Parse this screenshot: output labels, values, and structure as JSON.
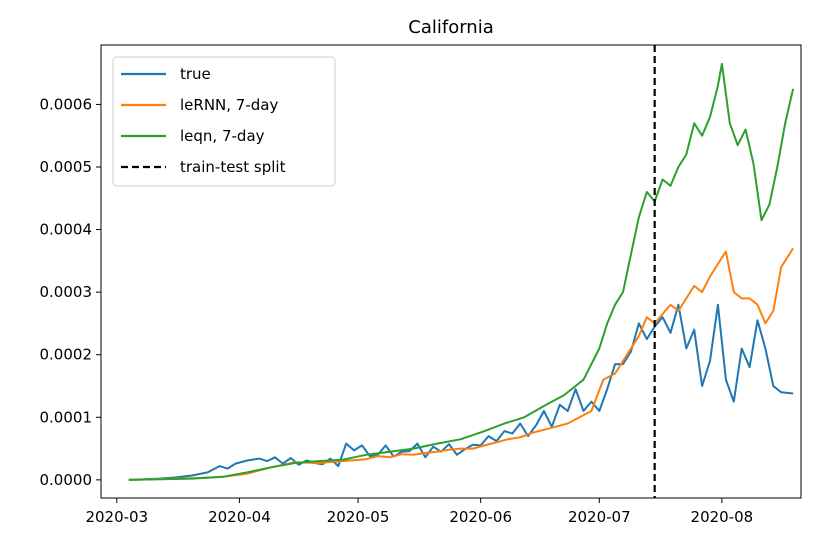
{
  "chart_data": {
    "type": "line",
    "title": "California",
    "xlabel": "",
    "ylabel": "",
    "xlim": [
      "2020-02-26",
      "2020-08-21"
    ],
    "ylim": [
      -2.9e-05,
      0.000695
    ],
    "x_ticks": [
      "2020-03",
      "2020-04",
      "2020-05",
      "2020-06",
      "2020-07",
      "2020-08"
    ],
    "y_ticks": [
      "0.0000",
      "0.0001",
      "0.0002",
      "0.0003",
      "0.0004",
      "0.0005",
      "0.0006"
    ],
    "grid": false,
    "legend_position": "top-left",
    "vline": {
      "x": "2020-07-15",
      "label": "train-test split",
      "color": "#000000",
      "style": "dashed"
    },
    "series": [
      {
        "name": "true",
        "color": "#1f77b4",
        "points": [
          [
            "2020-03-04",
            0.0
          ],
          [
            "2020-03-08",
            1e-06
          ],
          [
            "2020-03-12",
            2e-06
          ],
          [
            "2020-03-16",
            4e-06
          ],
          [
            "2020-03-20",
            7e-06
          ],
          [
            "2020-03-24",
            1.2e-05
          ],
          [
            "2020-03-27",
            2.2e-05
          ],
          [
            "2020-03-29",
            1.8e-05
          ],
          [
            "2020-03-31",
            2.6e-05
          ],
          [
            "2020-04-03",
            3.1e-05
          ],
          [
            "2020-04-06",
            3.4e-05
          ],
          [
            "2020-04-08",
            3e-05
          ],
          [
            "2020-04-10",
            3.6e-05
          ],
          [
            "2020-04-12",
            2.6e-05
          ],
          [
            "2020-04-14",
            3.5e-05
          ],
          [
            "2020-04-16",
            2.4e-05
          ],
          [
            "2020-04-18",
            3.1e-05
          ],
          [
            "2020-04-20",
            2.7e-05
          ],
          [
            "2020-04-22",
            2.5e-05
          ],
          [
            "2020-04-24",
            3.4e-05
          ],
          [
            "2020-04-26",
            2.2e-05
          ],
          [
            "2020-04-28",
            5.8e-05
          ],
          [
            "2020-04-30",
            4.7e-05
          ],
          [
            "2020-05-02",
            5.5e-05
          ],
          [
            "2020-05-04",
            3.8e-05
          ],
          [
            "2020-05-06",
            4e-05
          ],
          [
            "2020-05-08",
            5.5e-05
          ],
          [
            "2020-05-10",
            3.7e-05
          ],
          [
            "2020-05-12",
            4.5e-05
          ],
          [
            "2020-05-14",
            4.6e-05
          ],
          [
            "2020-05-16",
            5.8e-05
          ],
          [
            "2020-05-18",
            3.6e-05
          ],
          [
            "2020-05-20",
            5.3e-05
          ],
          [
            "2020-05-22",
            4.5e-05
          ],
          [
            "2020-05-24",
            5.7e-05
          ],
          [
            "2020-05-26",
            4e-05
          ],
          [
            "2020-05-28",
            4.9e-05
          ],
          [
            "2020-05-30",
            5.6e-05
          ],
          [
            "2020-06-01",
            5.5e-05
          ],
          [
            "2020-06-03",
            7e-05
          ],
          [
            "2020-06-05",
            6.2e-05
          ],
          [
            "2020-06-07",
            7.8e-05
          ],
          [
            "2020-06-09",
            7.4e-05
          ],
          [
            "2020-06-11",
            9e-05
          ],
          [
            "2020-06-13",
            7e-05
          ],
          [
            "2020-06-15",
            8.7e-05
          ],
          [
            "2020-06-17",
            0.00011
          ],
          [
            "2020-06-19",
            8.5e-05
          ],
          [
            "2020-06-21",
            0.00012
          ],
          [
            "2020-06-23",
            0.00011
          ],
          [
            "2020-06-25",
            0.000145
          ],
          [
            "2020-06-27",
            0.00011
          ],
          [
            "2020-06-29",
            0.000125
          ],
          [
            "2020-07-01",
            0.00011
          ],
          [
            "2020-07-03",
            0.000145
          ],
          [
            "2020-07-05",
            0.000185
          ],
          [
            "2020-07-07",
            0.000185
          ],
          [
            "2020-07-09",
            0.000205
          ],
          [
            "2020-07-11",
            0.00025
          ],
          [
            "2020-07-13",
            0.000225
          ],
          [
            "2020-07-15",
            0.000245
          ],
          [
            "2020-07-17",
            0.00026
          ],
          [
            "2020-07-19",
            0.000235
          ],
          [
            "2020-07-21",
            0.00028
          ],
          [
            "2020-07-23",
            0.00021
          ],
          [
            "2020-07-25",
            0.00024
          ],
          [
            "2020-07-27",
            0.00015
          ],
          [
            "2020-07-29",
            0.00019
          ],
          [
            "2020-07-31",
            0.00028
          ],
          [
            "2020-08-02",
            0.00016
          ],
          [
            "2020-08-04",
            0.000125
          ],
          [
            "2020-08-06",
            0.00021
          ],
          [
            "2020-08-08",
            0.00018
          ],
          [
            "2020-08-10",
            0.000255
          ],
          [
            "2020-08-12",
            0.00021
          ],
          [
            "2020-08-14",
            0.00015
          ],
          [
            "2020-08-16",
            0.00014
          ],
          [
            "2020-08-19",
            0.000138
          ]
        ]
      },
      {
        "name": "leRNN, 7-day",
        "color": "#ff7f0e",
        "points": [
          [
            "2020-03-04",
            0.0
          ],
          [
            "2020-03-10",
            1e-06
          ],
          [
            "2020-03-16",
            2e-06
          ],
          [
            "2020-03-22",
            3e-06
          ],
          [
            "2020-03-28",
            5e-06
          ],
          [
            "2020-04-03",
            1e-05
          ],
          [
            "2020-04-09",
            2e-05
          ],
          [
            "2020-04-15",
            2.8e-05
          ],
          [
            "2020-04-21",
            2.7e-05
          ],
          [
            "2020-04-27",
            3e-05
          ],
          [
            "2020-05-03",
            3.3e-05
          ],
          [
            "2020-05-06",
            3.8e-05
          ],
          [
            "2020-05-09",
            3.6e-05
          ],
          [
            "2020-05-12",
            4.1e-05
          ],
          [
            "2020-05-15",
            4e-05
          ],
          [
            "2020-05-18",
            4.3e-05
          ],
          [
            "2020-05-21",
            4.5e-05
          ],
          [
            "2020-05-24",
            4.8e-05
          ],
          [
            "2020-05-27",
            5e-05
          ],
          [
            "2020-05-30",
            5e-05
          ],
          [
            "2020-06-02",
            5.5e-05
          ],
          [
            "2020-06-05",
            6e-05
          ],
          [
            "2020-06-08",
            6.5e-05
          ],
          [
            "2020-06-11",
            6.8e-05
          ],
          [
            "2020-06-14",
            7.5e-05
          ],
          [
            "2020-06-17",
            8e-05
          ],
          [
            "2020-06-20",
            8.5e-05
          ],
          [
            "2020-06-23",
            9e-05
          ],
          [
            "2020-06-26",
            0.0001
          ],
          [
            "2020-06-29",
            0.00011
          ],
          [
            "2020-07-02",
            0.00016
          ],
          [
            "2020-07-05",
            0.00017
          ],
          [
            "2020-07-08",
            0.0002
          ],
          [
            "2020-07-11",
            0.00023
          ],
          [
            "2020-07-13",
            0.00026
          ],
          [
            "2020-07-15",
            0.00025
          ],
          [
            "2020-07-17",
            0.000265
          ],
          [
            "2020-07-19",
            0.00028
          ],
          [
            "2020-07-21",
            0.00027
          ],
          [
            "2020-07-23",
            0.00029
          ],
          [
            "2020-07-25",
            0.00031
          ],
          [
            "2020-07-27",
            0.0003
          ],
          [
            "2020-07-29",
            0.000325
          ],
          [
            "2020-07-31",
            0.000345
          ],
          [
            "2020-08-02",
            0.000365
          ],
          [
            "2020-08-04",
            0.0003
          ],
          [
            "2020-08-06",
            0.00029
          ],
          [
            "2020-08-08",
            0.00029
          ],
          [
            "2020-08-10",
            0.00028
          ],
          [
            "2020-08-12",
            0.00025
          ],
          [
            "2020-08-14",
            0.00027
          ],
          [
            "2020-08-16",
            0.00034
          ],
          [
            "2020-08-19",
            0.00037
          ]
        ]
      },
      {
        "name": "leqn, 7-day",
        "color": "#2ca02c",
        "points": [
          [
            "2020-03-04",
            0.0
          ],
          [
            "2020-03-12",
            1e-06
          ],
          [
            "2020-03-20",
            2e-06
          ],
          [
            "2020-03-28",
            5e-06
          ],
          [
            "2020-04-03",
            1.2e-05
          ],
          [
            "2020-04-09",
            2e-05
          ],
          [
            "2020-04-15",
            2.7e-05
          ],
          [
            "2020-04-21",
            3e-05
          ],
          [
            "2020-04-27",
            3.2e-05
          ],
          [
            "2020-05-03",
            4e-05
          ],
          [
            "2020-05-09",
            4.5e-05
          ],
          [
            "2020-05-15",
            5e-05
          ],
          [
            "2020-05-21",
            5.8e-05
          ],
          [
            "2020-05-27",
            6.5e-05
          ],
          [
            "2020-06-02",
            7.8e-05
          ],
          [
            "2020-06-07",
            9e-05
          ],
          [
            "2020-06-12",
            0.0001
          ],
          [
            "2020-06-17",
            0.000118
          ],
          [
            "2020-06-22",
            0.000135
          ],
          [
            "2020-06-27",
            0.00016
          ],
          [
            "2020-07-01",
            0.00021
          ],
          [
            "2020-07-03",
            0.00025
          ],
          [
            "2020-07-05",
            0.00028
          ],
          [
            "2020-07-07",
            0.0003
          ],
          [
            "2020-07-09",
            0.00036
          ],
          [
            "2020-07-11",
            0.00042
          ],
          [
            "2020-07-13",
            0.00046
          ],
          [
            "2020-07-15",
            0.000445
          ],
          [
            "2020-07-17",
            0.00048
          ],
          [
            "2020-07-19",
            0.00047
          ],
          [
            "2020-07-21",
            0.0005
          ],
          [
            "2020-07-23",
            0.00052
          ],
          [
            "2020-07-25",
            0.00057
          ],
          [
            "2020-07-27",
            0.00055
          ],
          [
            "2020-07-29",
            0.00058
          ],
          [
            "2020-07-31",
            0.00063
          ],
          [
            "2020-08-01",
            0.000665
          ],
          [
            "2020-08-03",
            0.00057
          ],
          [
            "2020-08-05",
            0.000535
          ],
          [
            "2020-08-07",
            0.00056
          ],
          [
            "2020-08-09",
            0.000505
          ],
          [
            "2020-08-11",
            0.000415
          ],
          [
            "2020-08-13",
            0.00044
          ],
          [
            "2020-08-15",
            0.0005
          ],
          [
            "2020-08-17",
            0.00057
          ],
          [
            "2020-08-19",
            0.000625
          ]
        ]
      }
    ]
  }
}
